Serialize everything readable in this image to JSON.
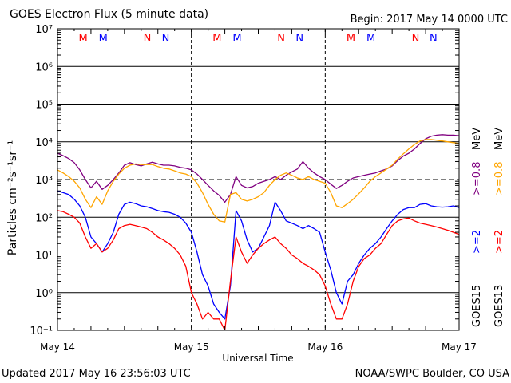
{
  "chart_data": {
    "type": "line",
    "title": "GOES Electron Flux (5 minute data)",
    "begin_label": "Begin: 2017 May 14 0000 UTC",
    "xlabel": "Universal Time",
    "ylabel": "Particles cm⁻²s⁻¹sr⁻¹",
    "y_scale": "log",
    "ylim": [
      0.1,
      10000000
    ],
    "y_ticks": [
      {
        "value": 0.1,
        "label": "10⁻¹"
      },
      {
        "value": 1,
        "label": "10⁰"
      },
      {
        "value": 10,
        "label": "10¹"
      },
      {
        "value": 100,
        "label": "10²"
      },
      {
        "value": 1000,
        "label": "10³"
      },
      {
        "value": 10000,
        "label": "10⁴"
      },
      {
        "value": 100000,
        "label": "10⁵"
      },
      {
        "value": 1000000,
        "label": "10⁶"
      },
      {
        "value": 10000000,
        "label": "10⁷"
      }
    ],
    "x_unit": "hours since 2017 May 14 0000 UTC",
    "xlim": [
      0,
      72
    ],
    "x_ticks": [
      {
        "value": 0,
        "label": "May 14"
      },
      {
        "value": 24,
        "label": "May 15"
      },
      {
        "value": 48,
        "label": "May 16"
      },
      {
        "value": 72,
        "label": "May 17"
      }
    ],
    "threshold_line": 1000,
    "grid": true,
    "markers": [
      {
        "label": "M",
        "x": 4.6,
        "color": "#ff0000"
      },
      {
        "label": "M",
        "x": 8.2,
        "color": "#0000ff"
      },
      {
        "label": "N",
        "x": 16.1,
        "color": "#ff0000"
      },
      {
        "label": "N",
        "x": 19.4,
        "color": "#0000ff"
      },
      {
        "label": "M",
        "x": 28.6,
        "color": "#ff0000"
      },
      {
        "label": "M",
        "x": 32.2,
        "color": "#0000ff"
      },
      {
        "label": "N",
        "x": 40.1,
        "color": "#ff0000"
      },
      {
        "label": "N",
        "x": 43.4,
        "color": "#0000ff"
      },
      {
        "label": "M",
        "x": 52.6,
        "color": "#ff0000"
      },
      {
        "label": "M",
        "x": 56.2,
        "color": "#0000ff"
      },
      {
        "label": "N",
        "x": 64.2,
        "color": "#ff0000"
      },
      {
        "label": "N",
        "x": 67.4,
        "color": "#0000ff"
      }
    ],
    "legend": {
      "placement": "right",
      "goes15": {
        "title": "GOES15",
        "entries": [
          {
            "label": ">=2",
            "color": "#0000ff"
          },
          {
            "label": ">=0.8",
            "color": "#800080"
          }
        ]
      },
      "goes13": {
        "title": "GOES13",
        "entries": [
          {
            "label": ">=2",
            "color": "#ff0000"
          },
          {
            "label": ">=0.8",
            "color": "#ffa500"
          }
        ]
      },
      "unit": "MeV"
    },
    "series": [
      {
        "name": "GOES15 >=0.8 MeV",
        "color": "#800080",
        "x": [
          0,
          1,
          2,
          3,
          4,
          5,
          6,
          7,
          8,
          9,
          10,
          11,
          12,
          13,
          14,
          15,
          16,
          17,
          18,
          19,
          20,
          21,
          22,
          23,
          24,
          25,
          26,
          27,
          28,
          29,
          30,
          31,
          32,
          33,
          34,
          35,
          36,
          37,
          38,
          39,
          40,
          41,
          42,
          43,
          44,
          45,
          46,
          47,
          48,
          49,
          50,
          51,
          52,
          53,
          54,
          55,
          56,
          57,
          58,
          59,
          60,
          61,
          62,
          63,
          64,
          65,
          66,
          67,
          68,
          69,
          70,
          71,
          72
        ],
        "y": [
          5000,
          4300,
          3600,
          2800,
          1800,
          1000,
          600,
          900,
          550,
          700,
          1000,
          1500,
          2400,
          2800,
          2500,
          2300,
          2600,
          2900,
          2600,
          2400,
          2400,
          2300,
          2100,
          2000,
          1800,
          1400,
          1000,
          700,
          500,
          380,
          250,
          400,
          1200,
          700,
          600,
          650,
          800,
          900,
          1000,
          1200,
          1000,
          1300,
          1600,
          1900,
          3000,
          2000,
          1500,
          1200,
          1000,
          750,
          580,
          700,
          900,
          1100,
          1200,
          1300,
          1400,
          1500,
          1700,
          1900,
          2300,
          3200,
          4200,
          5000,
          6500,
          9000,
          12000,
          14000,
          15000,
          15500,
          15000,
          15000,
          14500
        ]
      },
      {
        "name": "GOES13 >=0.8 MeV",
        "color": "#ffa500",
        "x": [
          0,
          1,
          2,
          3,
          4,
          5,
          6,
          7,
          8,
          9,
          10,
          11,
          12,
          13,
          14,
          15,
          16,
          17,
          18,
          19,
          20,
          21,
          22,
          23,
          24,
          25,
          26,
          27,
          28,
          29,
          30,
          31,
          32,
          33,
          34,
          35,
          36,
          37,
          38,
          39,
          40,
          41,
          42,
          43,
          44,
          45,
          46,
          47,
          48,
          49,
          50,
          51,
          52,
          53,
          54,
          55,
          56,
          57,
          58,
          59,
          60,
          61,
          62,
          63,
          64,
          65,
          66,
          67,
          68,
          69,
          70,
          71,
          72
        ],
        "y": [
          1800,
          1500,
          1200,
          900,
          600,
          300,
          180,
          350,
          220,
          500,
          900,
          1400,
          2000,
          2400,
          2600,
          2500,
          2500,
          2500,
          2200,
          2000,
          1900,
          1700,
          1500,
          1400,
          1200,
          800,
          450,
          220,
          120,
          80,
          75,
          400,
          450,
          300,
          270,
          300,
          350,
          450,
          700,
          1000,
          1300,
          1500,
          1300,
          1100,
          1000,
          1200,
          1000,
          900,
          800,
          450,
          200,
          180,
          230,
          300,
          420,
          600,
          900,
          1200,
          1500,
          1900,
          2400,
          3500,
          4800,
          6500,
          8500,
          10500,
          11500,
          11500,
          11000,
          10500,
          10000,
          9500,
          9000
        ]
      },
      {
        "name": "GOES15 >=2 MeV",
        "color": "#0000ff",
        "x": [
          0,
          1,
          2,
          3,
          4,
          5,
          6,
          7,
          8,
          9,
          10,
          11,
          12,
          13,
          14,
          15,
          16,
          17,
          18,
          19,
          20,
          21,
          22,
          23,
          24,
          25,
          26,
          27,
          28,
          29,
          30,
          31,
          32,
          33,
          34,
          35,
          36,
          37,
          38,
          39,
          40,
          41,
          42,
          43,
          44,
          45,
          46,
          47,
          48,
          49,
          50,
          51,
          52,
          53,
          54,
          55,
          56,
          57,
          58,
          59,
          60,
          61,
          62,
          63,
          64,
          65,
          66,
          67,
          68,
          69,
          70,
          71,
          72
        ],
        "y": [
          500,
          450,
          400,
          300,
          200,
          100,
          30,
          20,
          12,
          20,
          40,
          120,
          220,
          250,
          230,
          200,
          190,
          170,
          150,
          140,
          135,
          120,
          100,
          70,
          40,
          12,
          3,
          1.5,
          0.5,
          0.3,
          0.2,
          1.5,
          150,
          80,
          25,
          12,
          15,
          30,
          60,
          250,
          150,
          80,
          70,
          60,
          50,
          60,
          50,
          40,
          12,
          4,
          1,
          0.5,
          2,
          3,
          6,
          10,
          15,
          20,
          30,
          50,
          80,
          120,
          160,
          180,
          180,
          220,
          230,
          200,
          190,
          185,
          190,
          200,
          180
        ]
      },
      {
        "name": "GOES13 >=2 MeV",
        "color": "#ff0000",
        "x": [
          0,
          1,
          2,
          3,
          4,
          5,
          6,
          7,
          8,
          9,
          10,
          11,
          12,
          13,
          14,
          15,
          16,
          17,
          18,
          19,
          20,
          21,
          22,
          23,
          24,
          25,
          26,
          27,
          28,
          29,
          30,
          31,
          32,
          33,
          34,
          35,
          36,
          37,
          38,
          39,
          40,
          41,
          42,
          43,
          44,
          45,
          46,
          47,
          48,
          49,
          50,
          51,
          52,
          53,
          54,
          55,
          56,
          57,
          58,
          59,
          60,
          61,
          62,
          63,
          64,
          65,
          66,
          67,
          68,
          69,
          70,
          71,
          72
        ],
        "y": [
          150,
          140,
          120,
          100,
          70,
          30,
          15,
          20,
          12,
          15,
          25,
          50,
          60,
          65,
          60,
          55,
          50,
          40,
          30,
          25,
          20,
          15,
          10,
          5,
          1,
          0.5,
          0.2,
          0.3,
          0.2,
          0.2,
          0.1,
          2,
          30,
          12,
          6,
          10,
          15,
          20,
          25,
          30,
          20,
          15,
          10,
          8,
          6,
          5,
          4,
          3,
          1.5,
          0.5,
          0.2,
          0.2,
          0.5,
          2,
          5,
          8,
          10,
          15,
          20,
          35,
          60,
          80,
          90,
          95,
          80,
          70,
          65,
          60,
          55,
          50,
          45,
          40,
          35
        ]
      }
    ]
  },
  "footer": {
    "updated": "Updated 2017 May 16 23:56:03 UTC",
    "credit": "NOAA/SWPC Boulder, CO USA"
  }
}
